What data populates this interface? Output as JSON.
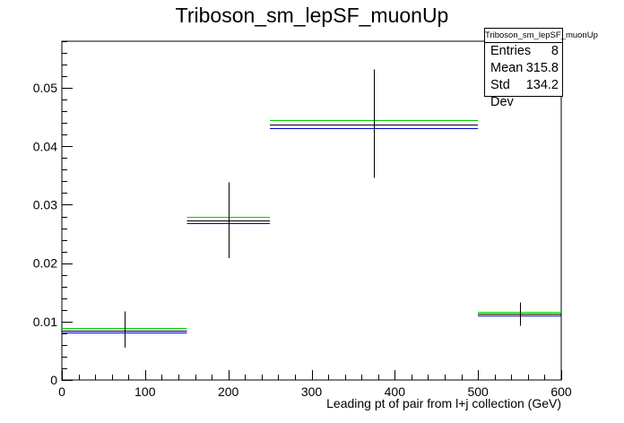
{
  "chart_data": {
    "type": "histogram",
    "title": "Triboson_sm_lepSF_muonUp",
    "xlabel": "Leading pt of pair from l+j collection (GeV)",
    "ylabel": "",
    "xlim": [
      0,
      600
    ],
    "ylim": [
      0,
      0.058
    ],
    "x_ticks": [
      0,
      100,
      200,
      300,
      400,
      500,
      600
    ],
    "y_ticks": [
      0,
      0.01,
      0.02,
      0.03,
      0.04,
      0.05
    ],
    "x_tick_labels": [
      "0",
      "100",
      "200",
      "300",
      "400",
      "500",
      "600"
    ],
    "y_tick_labels": [
      "0",
      "0.01",
      "0.02",
      "0.03",
      "0.04",
      "0.05"
    ],
    "bins": [
      {
        "x_low": 0,
        "x_high": 150,
        "x_center": 75,
        "value": 0.0085,
        "err_low": 0.0055,
        "err_high": 0.0117
      },
      {
        "x_low": 150,
        "x_high": 250,
        "x_center": 200,
        "value": 0.0273,
        "err_low": 0.0209,
        "err_high": 0.0338
      },
      {
        "x_low": 250,
        "x_high": 500,
        "x_center": 375,
        "value": 0.0438,
        "err_low": 0.0346,
        "err_high": 0.0532
      },
      {
        "x_low": 500,
        "x_high": 600,
        "x_center": 550,
        "value": 0.0113,
        "err_low": 0.0093,
        "err_high": 0.0133
      }
    ],
    "variation_lines": [
      {
        "color": "#00cc00",
        "values": [
          0.0089,
          0.028,
          0.0445,
          0.0116
        ]
      },
      {
        "color": "#0000cc",
        "values": [
          0.0082,
          0.0268,
          0.0431,
          0.0111
        ]
      }
    ],
    "grid": false
  },
  "stats": {
    "title": "Triboson_sm_lepSF_muonUp",
    "entries_label": "Entries",
    "entries_value": "8",
    "mean_label": "Mean",
    "mean_value": "315.8",
    "stddev_label": "Std Dev",
    "stddev_value": "134.2"
  }
}
